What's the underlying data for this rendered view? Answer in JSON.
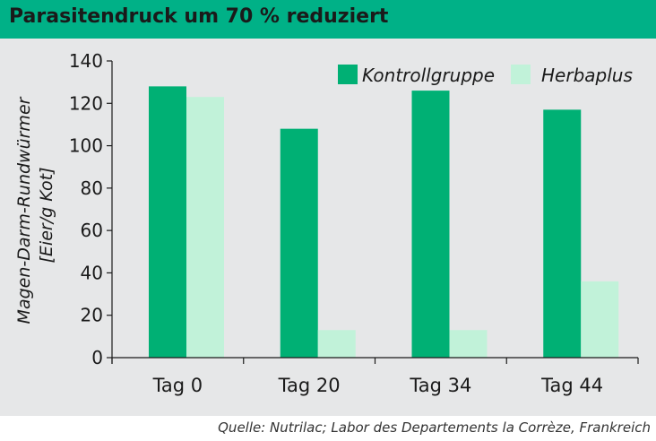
{
  "title": "Parasitendruck um 70 % reduziert",
  "source": "Quelle: Nutrilac; Labor des Departements la Corrèze, Frankreich",
  "colors": {
    "title_bar": "#00b187",
    "panel": "#e6e7e8",
    "kontroll": "#00b074",
    "herbaplus": "#c1f2d9"
  },
  "chart_data": {
    "type": "bar",
    "categories": [
      "Tag 0",
      "Tag 20",
      "Tag 34",
      "Tag 44"
    ],
    "series": [
      {
        "name": "Kontrollgruppe",
        "values": [
          128,
          108,
          126,
          117
        ]
      },
      {
        "name": "Herbaplus",
        "values": [
          123,
          13,
          13,
          36
        ]
      }
    ],
    "ylabel_line1": "Magen-Darm-Rundwürmer",
    "ylabel_line2": "[Eier/g Kot]",
    "ylim": [
      0,
      140
    ],
    "yticks": [
      0,
      20,
      40,
      60,
      80,
      100,
      120,
      140
    ],
    "legend_position": "top-right",
    "grid": false
  }
}
